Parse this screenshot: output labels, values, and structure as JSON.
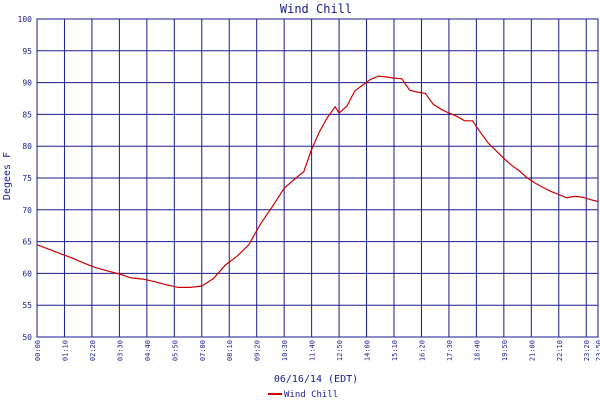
{
  "chart_data": {
    "type": "line",
    "title": "Wind Chill",
    "xlabel": "06/16/14 (EDT)",
    "ylabel": "Degees F",
    "ylim": [
      50,
      100
    ],
    "y_ticks": [
      "100",
      "95",
      "90",
      "85",
      "80",
      "75",
      "70",
      "65",
      "60",
      "55",
      "50"
    ],
    "x_ticks": [
      "00:00",
      "01:10",
      "02:20",
      "03:30",
      "04:40",
      "05:50",
      "07:00",
      "08:10",
      "09:20",
      "10:30",
      "11:40",
      "12:50",
      "14:00",
      "15:10",
      "16:20",
      "17:30",
      "18:40",
      "19:50",
      "21:00",
      "22:10",
      "23:20",
      "23:50"
    ],
    "grid": true,
    "legend_position": "bottom-left",
    "series": [
      {
        "name": "Wind Chill",
        "color": "#cc0000",
        "x": [
          "00:00",
          "00:30",
          "01:00",
          "01:30",
          "02:00",
          "02:30",
          "03:00",
          "03:30",
          "04:00",
          "04:30",
          "05:00",
          "05:30",
          "06:00",
          "06:30",
          "07:00",
          "07:30",
          "08:00",
          "08:30",
          "09:00",
          "09:30",
          "10:00",
          "10:30",
          "11:00",
          "11:20",
          "11:40",
          "12:00",
          "12:20",
          "12:40",
          "12:50",
          "13:10",
          "13:30",
          "13:50",
          "14:10",
          "14:30",
          "14:50",
          "15:10",
          "15:30",
          "15:50",
          "16:10",
          "16:30",
          "16:50",
          "17:10",
          "17:30",
          "17:50",
          "18:10",
          "18:30",
          "18:50",
          "19:10",
          "19:30",
          "19:50",
          "20:10",
          "20:30",
          "20:50",
          "21:10",
          "21:30",
          "21:50",
          "22:10",
          "22:30",
          "22:50",
          "23:10",
          "23:30",
          "23:50"
        ],
        "values": [
          64.5,
          63.8,
          63.1,
          62.4,
          61.6,
          60.9,
          60.4,
          59.9,
          59.3,
          59.1,
          58.7,
          58.2,
          57.8,
          57.8,
          58.0,
          59.2,
          61.3,
          62.7,
          64.5,
          67.8,
          70.5,
          73.4,
          75.0,
          76.0,
          79.5,
          82.3,
          84.5,
          86.2,
          85.2,
          86.3,
          88.7,
          89.6,
          90.5,
          91.0,
          90.9,
          90.7,
          90.6,
          88.8,
          88.5,
          88.3,
          86.6,
          85.8,
          85.2,
          84.7,
          84.0,
          84.0,
          82.2,
          80.5,
          79.3,
          78.1,
          77.0,
          76.1,
          75.0,
          74.2,
          73.5,
          72.9,
          72.4,
          71.9,
          72.1,
          72.0,
          71.6,
          71.3
        ]
      }
    ]
  }
}
